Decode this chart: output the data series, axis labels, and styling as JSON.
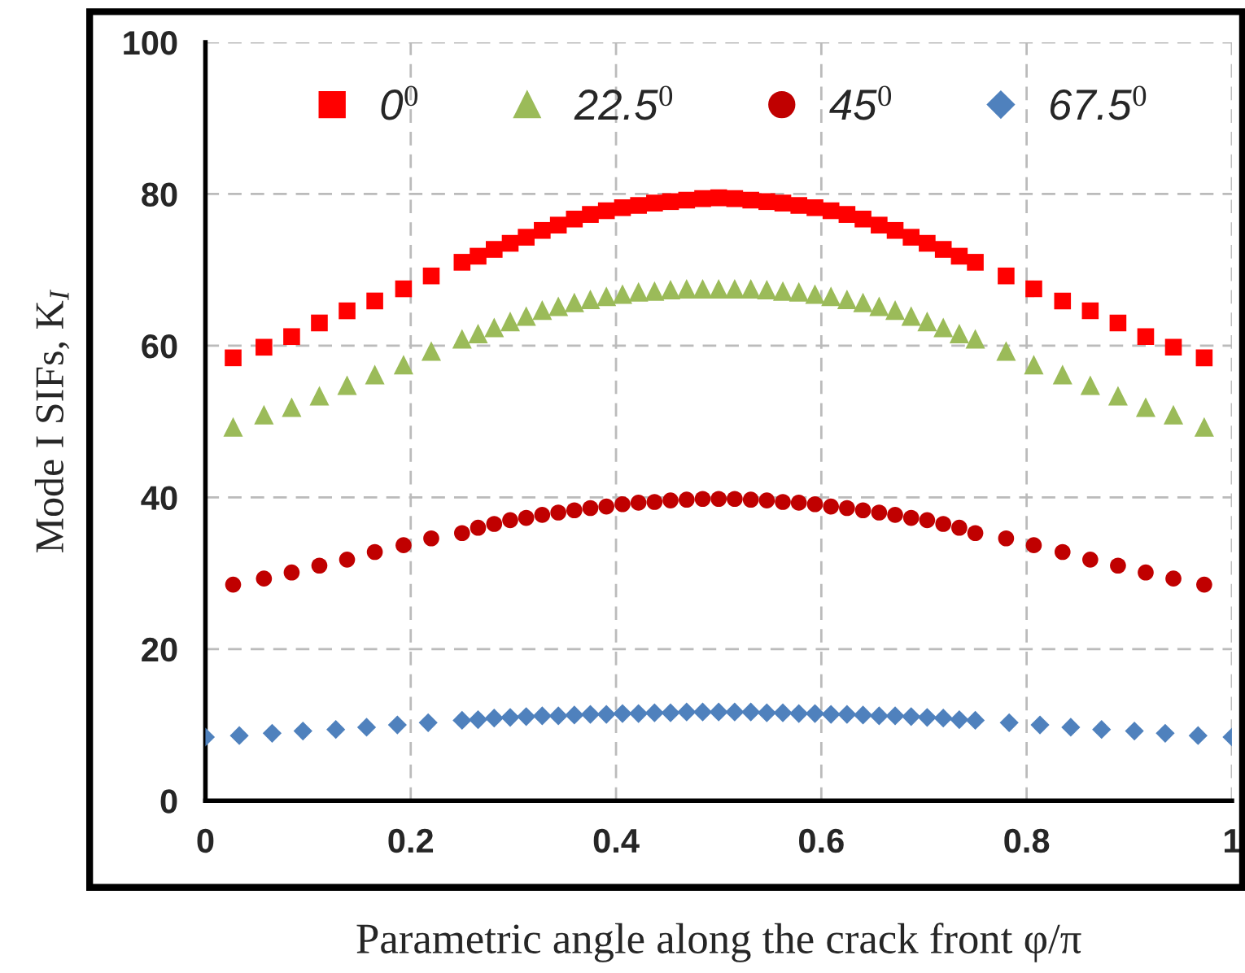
{
  "chart_data": {
    "type": "scatter",
    "xlabel": "Parametric angle along the crack front φ/π",
    "ylabel": "Mode I SIFs, K$_{I}$",
    "x": [
      0.027,
      0.057,
      0.084,
      0.111,
      0.138,
      0.165,
      0.193,
      0.22,
      0.25,
      0.2656,
      0.2813,
      0.2969,
      0.3125,
      0.3281,
      0.3438,
      0.3594,
      0.375,
      0.3906,
      0.4063,
      0.4219,
      0.4375,
      0.4531,
      0.4688,
      0.4844,
      0.5,
      0.5156,
      0.5313,
      0.5469,
      0.5625,
      0.5781,
      0.5938,
      0.6094,
      0.625,
      0.6406,
      0.6563,
      0.6719,
      0.6875,
      0.7031,
      0.7188,
      0.7344,
      0.75,
      0.78,
      0.807,
      0.835,
      0.862,
      0.889,
      0.916,
      0.943,
      0.973
    ],
    "series": [
      {
        "name": "0$^{0}$",
        "color": "#ff0000",
        "marker": "square",
        "values": [
          58.4,
          59.8,
          61.2,
          63.0,
          64.6,
          65.9,
          67.5,
          69.2,
          71.0,
          71.8,
          72.7,
          73.5,
          74.3,
          75.2,
          75.9,
          76.7,
          77.3,
          77.8,
          78.2,
          78.5,
          78.8,
          79.0,
          79.2,
          79.4,
          79.5,
          79.4,
          79.2,
          79.0,
          78.8,
          78.5,
          78.2,
          77.8,
          77.3,
          76.7,
          75.9,
          75.2,
          74.3,
          73.5,
          72.7,
          71.8,
          71.0,
          69.2,
          67.5,
          65.9,
          64.6,
          63.0,
          61.2,
          59.8,
          58.4
        ]
      },
      {
        "name": "22.5$^{0}$",
        "color": "#9bbb59",
        "marker": "triangle",
        "values": [
          49.3,
          50.9,
          51.9,
          53.4,
          54.8,
          56.2,
          57.5,
          59.3,
          60.9,
          61.6,
          62.4,
          63.2,
          63.9,
          64.7,
          65.2,
          65.7,
          66.1,
          66.5,
          66.8,
          67.1,
          67.2,
          67.4,
          67.5,
          67.5,
          67.5,
          67.5,
          67.5,
          67.4,
          67.2,
          67.1,
          66.8,
          66.5,
          66.1,
          65.7,
          65.2,
          64.7,
          63.9,
          63.2,
          62.4,
          61.6,
          60.9,
          59.3,
          57.5,
          56.2,
          54.8,
          53.4,
          51.9,
          50.9,
          49.3
        ]
      },
      {
        "name": "45$^{0}$",
        "color": "#c00000",
        "marker": "circle",
        "values": [
          28.5,
          29.3,
          30.1,
          31.0,
          31.8,
          32.8,
          33.7,
          34.6,
          35.3,
          36.0,
          36.5,
          37.0,
          37.3,
          37.7,
          38.0,
          38.3,
          38.6,
          38.8,
          39.1,
          39.3,
          39.4,
          39.6,
          39.7,
          39.8,
          39.8,
          39.8,
          39.7,
          39.6,
          39.4,
          39.3,
          39.1,
          38.8,
          38.6,
          38.3,
          38.0,
          37.7,
          37.3,
          37.0,
          36.5,
          36.0,
          35.3,
          34.6,
          33.7,
          32.8,
          31.8,
          31.0,
          30.1,
          29.3,
          28.5
        ]
      },
      {
        "name": "67.5$^{0}$",
        "color": "#4f81bd",
        "marker": "diamond",
        "x": [
          0,
          0.033,
          0.065,
          0.095,
          0.127,
          0.157,
          0.187,
          0.217,
          0.25,
          0.2656,
          0.2813,
          0.2969,
          0.3125,
          0.3281,
          0.3438,
          0.3594,
          0.375,
          0.3906,
          0.4063,
          0.4219,
          0.4375,
          0.4531,
          0.4688,
          0.4844,
          0.5,
          0.5156,
          0.5313,
          0.5469,
          0.5625,
          0.5781,
          0.5938,
          0.6094,
          0.625,
          0.6406,
          0.6563,
          0.6719,
          0.6875,
          0.7031,
          0.7188,
          0.7344,
          0.75,
          0.783,
          0.813,
          0.843,
          0.873,
          0.905,
          0.935,
          0.967,
          1
        ],
        "values": [
          8.4,
          8.6,
          8.9,
          9.2,
          9.4,
          9.7,
          10.0,
          10.3,
          10.6,
          10.7,
          10.9,
          11.0,
          11.1,
          11.2,
          11.2,
          11.3,
          11.4,
          11.4,
          11.5,
          11.5,
          11.6,
          11.6,
          11.7,
          11.7,
          11.7,
          11.7,
          11.7,
          11.6,
          11.6,
          11.5,
          11.5,
          11.4,
          11.4,
          11.3,
          11.2,
          11.2,
          11.1,
          11.0,
          10.9,
          10.7,
          10.6,
          10.3,
          10.0,
          9.7,
          9.4,
          9.2,
          8.9,
          8.6,
          8.4
        ]
      }
    ],
    "xlim": [
      0,
      1
    ],
    "ylim": [
      0,
      100
    ],
    "xticks": [
      0,
      0.2,
      0.4,
      0.6,
      0.8,
      1
    ],
    "yticks": [
      0,
      20,
      40,
      60,
      80,
      100
    ],
    "grid": true,
    "legend": "top"
  }
}
